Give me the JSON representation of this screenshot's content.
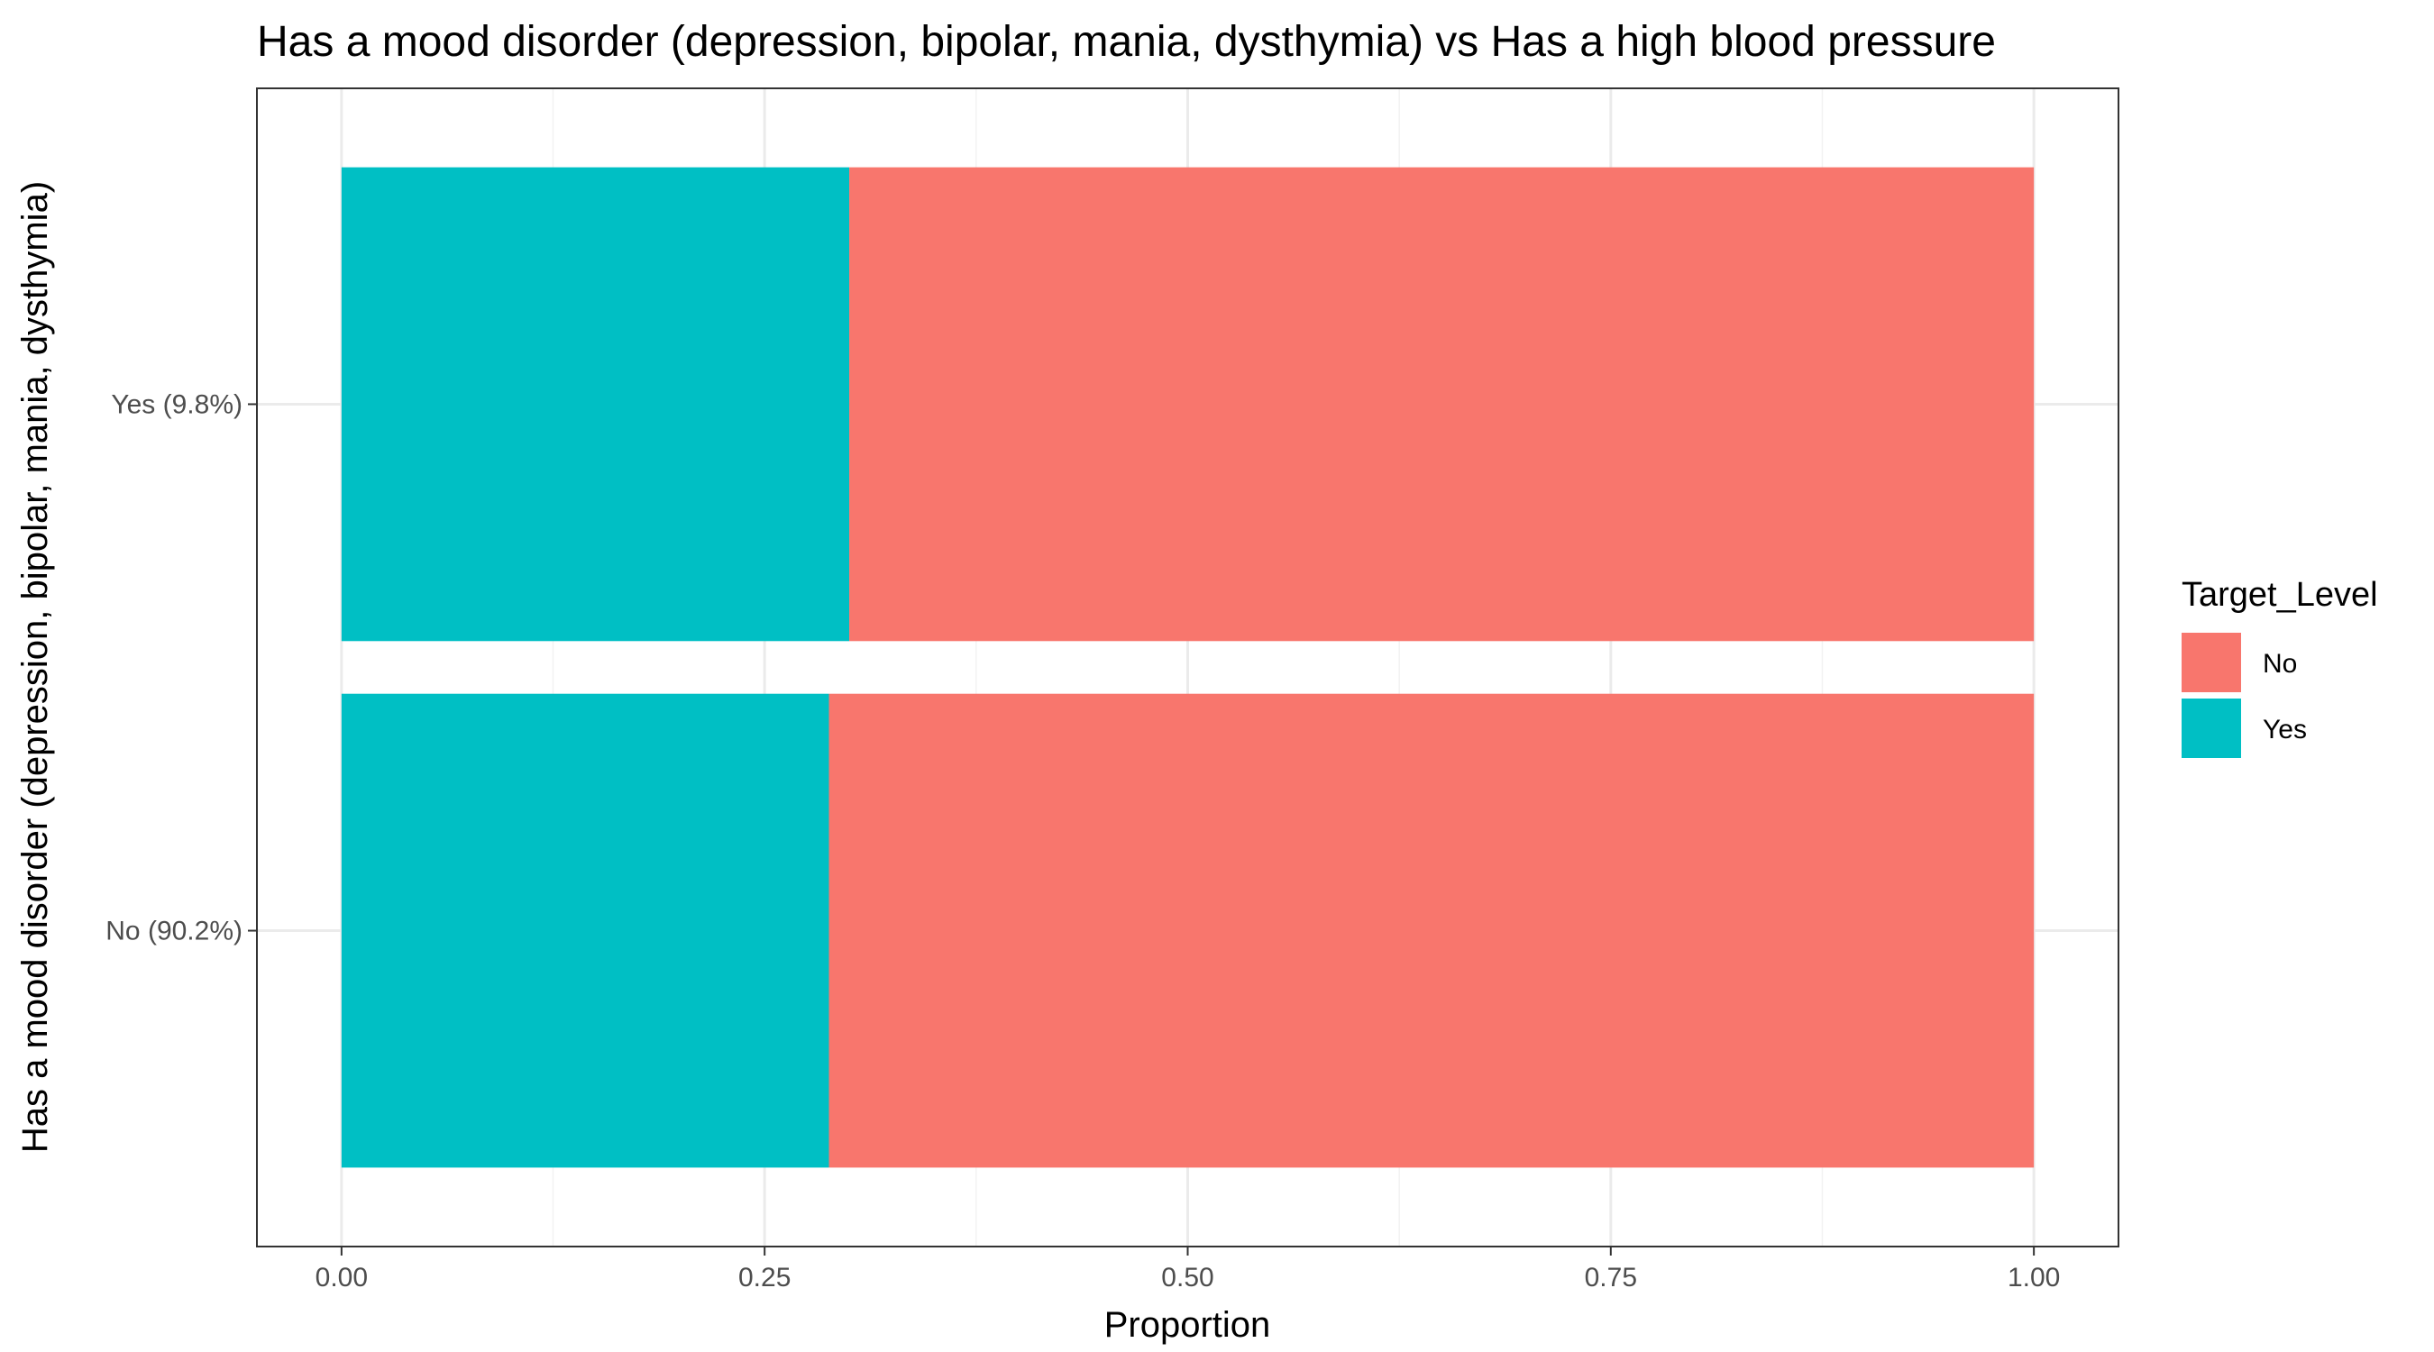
{
  "chart_data": {
    "type": "bar",
    "orientation": "horizontal",
    "stacked": true,
    "title": "Has a mood disorder (depression, bipolar, mania, dysthymia) vs Has a high blood pressure",
    "xlabel": "Proportion",
    "ylabel": "Has a mood disorder (depression, bipolar, mania, dysthymia)",
    "categories": [
      "No (90.2%)",
      "Yes (9.8%)"
    ],
    "x_ticks": [
      "0.00",
      "0.25",
      "0.50",
      "0.75",
      "1.00"
    ],
    "xlim": [
      -0.05,
      1.05
    ],
    "grid": true,
    "legend_position": "right",
    "legend_title": "Target_Level",
    "series": [
      {
        "name": "Yes",
        "color": "#00BFC4",
        "values": [
          0.288,
          0.3
        ]
      },
      {
        "name": "No",
        "color": "#F8766D",
        "values": [
          0.712,
          0.7
        ]
      }
    ],
    "legend_order": [
      "No",
      "Yes"
    ]
  }
}
